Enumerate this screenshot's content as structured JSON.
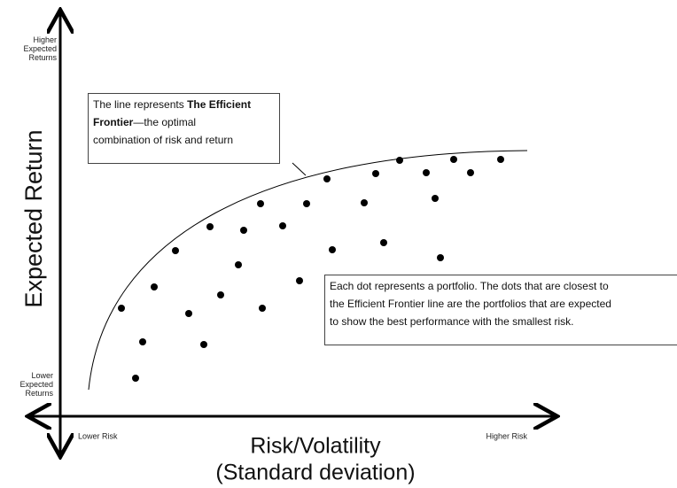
{
  "y_axis": {
    "title": "Expected Return",
    "top_label": [
      "Higher",
      "Expected",
      "Returns"
    ],
    "bottom_label": [
      "Lower",
      "Expected",
      "Returns"
    ]
  },
  "x_axis": {
    "title": [
      "Risk/Volatility",
      "(Standard deviation)"
    ],
    "left_label": "Lower Risk",
    "right_label": "Higher Risk"
  },
  "frontier_callout": {
    "lines": [
      [
        {
          "text": "The line represents "
        },
        {
          "text": "The Efficient",
          "bold": true
        }
      ],
      [
        {
          "text": "Frontier",
          "bold": true
        },
        {
          "text": "—the optimal"
        }
      ],
      [
        {
          "text": "combination of risk and return"
        }
      ]
    ]
  },
  "dots_callout": {
    "lines": [
      "Each dot represents a portfolio. The dots that are closest to",
      "the Efficient Frontier line are the portfolios that are expected",
      "to show the best performance with the smallest risk."
    ]
  }
}
